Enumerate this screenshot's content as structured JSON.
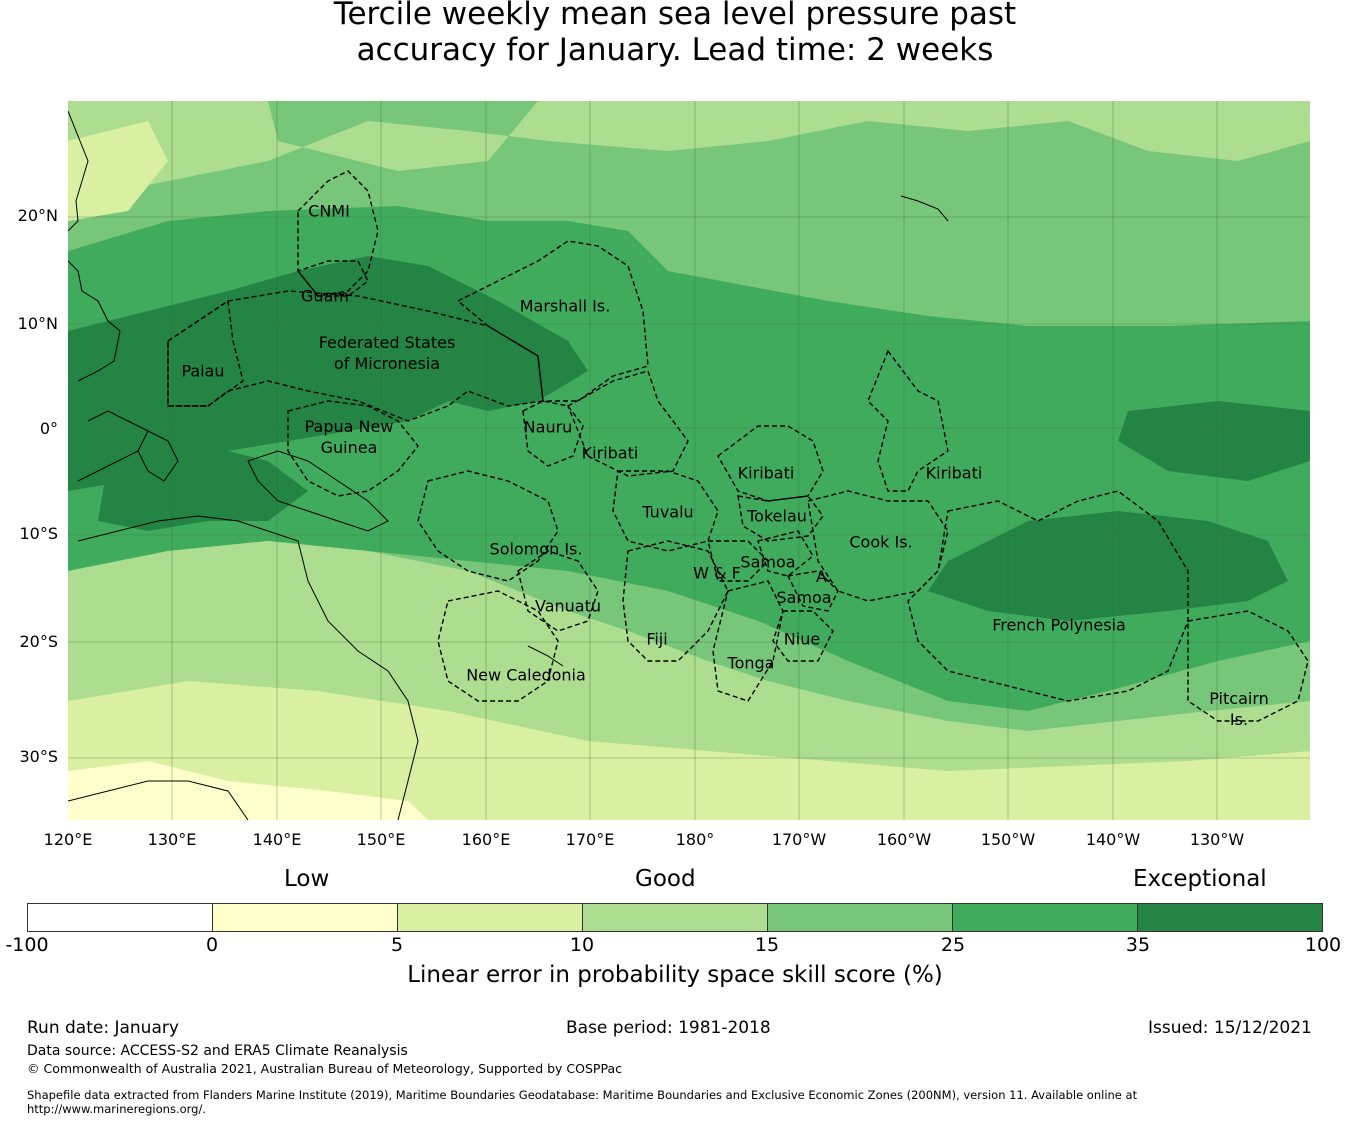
{
  "title": {
    "line1": "Tercile weekly mean sea level pressure past",
    "line2": "accuracy for January. Lead time: 2 weeks"
  },
  "map": {
    "lat_ticks": [
      "20°N",
      "10°N",
      "0°",
      "10°S",
      "20°S",
      "30°S"
    ],
    "lon_ticks": [
      "120°E",
      "130°E",
      "140°E",
      "150°E",
      "160°E",
      "170°E",
      "180°",
      "170°W",
      "160°W",
      "150°W",
      "140°W",
      "130°W"
    ],
    "regions": [
      "CNMI",
      "Guam",
      "Marshall Is.",
      "Federated States\nof Micronesia",
      "Palau",
      "Papua New\nGuinea",
      "Nauru",
      "Kiribati",
      "Kiribati",
      "Kiribati",
      "Tuvalu",
      "Tokelau",
      "Solomon Is.",
      "Samoa",
      "W & F",
      "A.\nSamoa",
      "Cook Is.",
      "Vanuatu",
      "Fiji",
      "Niue",
      "Tonga",
      "New Caledonia",
      "French Polynesia",
      "Pitcairn\nIs."
    ],
    "colors": {
      "ocean_background": "#78c679",
      "score_below_0": "#ffffff",
      "score_0_5": "#ffffcc",
      "score_5_10": "#d9f0a3",
      "score_10_15": "#addd8e",
      "score_15_25": "#78c679",
      "score_25_35": "#41ab5d",
      "score_35_100": "#238443"
    }
  },
  "legend": {
    "categories": [
      "Low",
      "Good",
      "Exceptional"
    ],
    "bins": [
      {
        "from": -100,
        "to": 0,
        "color": "#ffffff"
      },
      {
        "from": 0,
        "to": 5,
        "color": "#ffffcc"
      },
      {
        "from": 5,
        "to": 10,
        "color": "#d9f0a3"
      },
      {
        "from": 10,
        "to": 15,
        "color": "#addd8e"
      },
      {
        "from": 15,
        "to": 25,
        "color": "#78c679"
      },
      {
        "from": 25,
        "to": 35,
        "color": "#41ab5d"
      },
      {
        "from": 35,
        "to": 100,
        "color": "#238443"
      }
    ],
    "ticks": [
      "-100",
      "0",
      "5",
      "10",
      "15",
      "25",
      "35",
      "100"
    ],
    "label": "Linear error in probability space skill score (%)"
  },
  "footer": {
    "run_date": "Run date: January",
    "base_period": "Base period: 1981-2018",
    "issued": "Issued: 15/12/2021",
    "data_source": "Data source: ACCESS-S2 and ERA5 Climate Reanalysis",
    "copyright": "© Commonwealth of Australia 2021, Australian Bureau of Meteorology, Supported by COSPPac",
    "shapefile": "Shapefile data extracted from Flanders Marine Institute (2019), Maritime Boundaries Geodatabase: Maritime Boundaries and Exclusive Economic Zones (200NM), version 11. Available online at http://www.marineregions.org/."
  }
}
